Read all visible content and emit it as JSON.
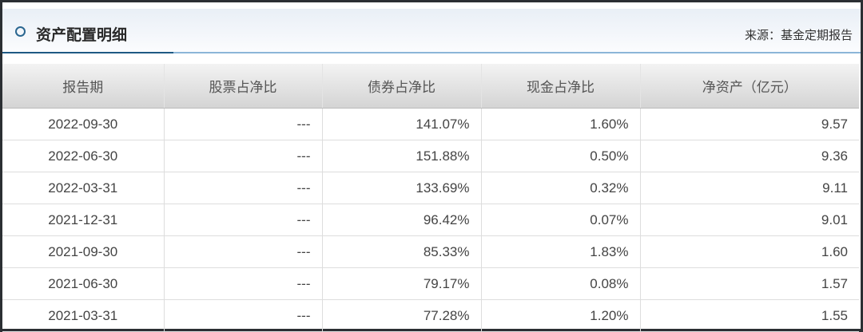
{
  "panel": {
    "title": "资产配置明细",
    "source": "来源：基金定期报告",
    "icon": "ring-icon"
  },
  "table": {
    "headers": [
      "报告期",
      "股票占净比",
      "债券占净比",
      "现金占净比",
      "净资产（亿元）"
    ],
    "rows": [
      [
        "2022-09-30",
        "---",
        "141.07%",
        "1.60%",
        "9.57"
      ],
      [
        "2022-06-30",
        "---",
        "151.88%",
        "0.50%",
        "9.36"
      ],
      [
        "2022-03-31",
        "---",
        "133.69%",
        "0.32%",
        "9.11"
      ],
      [
        "2021-12-31",
        "---",
        "96.42%",
        "0.07%",
        "9.01"
      ],
      [
        "2021-09-30",
        "---",
        "85.33%",
        "1.83%",
        "1.60"
      ],
      [
        "2021-06-30",
        "---",
        "79.17%",
        "0.08%",
        "1.57"
      ],
      [
        "2021-03-31",
        "---",
        "77.28%",
        "1.20%",
        "1.55"
      ]
    ]
  }
}
